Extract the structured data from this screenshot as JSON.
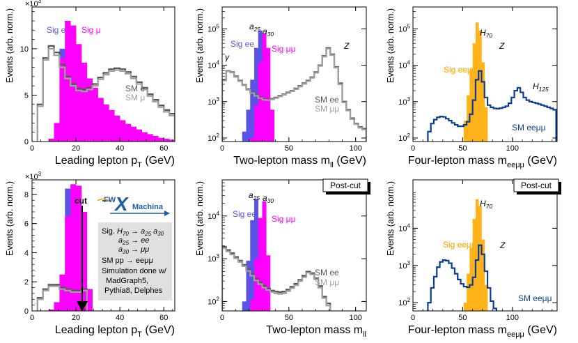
{
  "chart_data": [
    {
      "type": "histogram",
      "id": "p1",
      "xlabel": "Leading lepton p",
      "xlabel_sub": "T",
      "xlabel_unit": " (GeV)",
      "ylabel": "Events (arb. norm.)",
      "multiplier": "×10",
      "multiplier_exp": "3",
      "xlim": [
        0,
        65
      ],
      "ylim": [
        0,
        14.5
      ],
      "yscale": "linear",
      "xticks": [
        0,
        20,
        40,
        60
      ],
      "yticks": [
        0,
        5,
        10
      ],
      "bin_width": 2.5,
      "series": [
        {
          "name": "SM e",
          "style": "line",
          "color": "#555555",
          "x0": 2.5,
          "values": [
            4.0,
            9.0,
            10.3,
            9.6,
            8.3,
            7.0,
            6.2,
            5.7,
            5.6,
            5.8,
            6.2,
            6.9,
            7.4,
            7.8,
            7.9,
            7.8,
            7.5,
            7.0,
            6.4,
            5.8,
            5.1,
            4.5,
            3.9,
            3.4,
            3.0
          ]
        },
        {
          "name": "SM μ",
          "style": "line",
          "color": "#a0a0a0",
          "x0": 2.5,
          "values": [
            3.8,
            8.8,
            10.0,
            9.3,
            8.0,
            6.8,
            6.0,
            5.5,
            5.4,
            5.6,
            6.0,
            6.7,
            7.2,
            7.6,
            7.7,
            7.6,
            7.3,
            6.8,
            6.2,
            5.6,
            4.9,
            4.3,
            3.7,
            3.2,
            2.8
          ]
        },
        {
          "name": "Sig e",
          "style": "fill",
          "color": "#5b52e6",
          "x0": 12.5,
          "values": [
            10.0,
            13.0,
            12.5,
            9.0
          ]
        },
        {
          "name": "Sig μ",
          "style": "fill",
          "color": "#ff00ff",
          "x0": 7.5,
          "values": [
            0.3,
            2.0,
            9.0,
            13.0,
            12.5,
            10.5,
            8.5,
            6.8,
            5.8,
            4.7,
            4.0,
            3.4,
            2.8,
            2.3,
            1.9,
            1.6,
            1.3,
            1.0,
            0.8,
            0.6,
            0.4,
            0.3,
            0.2
          ]
        }
      ],
      "legend": [
        {
          "text": "Sig e",
          "color": "#5b52e6",
          "pos": "top-left"
        },
        {
          "text": "Sig μ",
          "color": "#ff00ff",
          "pos": "top-left"
        },
        {
          "text": "SM e",
          "color": "#555555",
          "pos": "right"
        },
        {
          "text": "SM μ",
          "color": "#a0a0a0",
          "pos": "right"
        }
      ]
    },
    {
      "type": "histogram",
      "id": "p2",
      "xlabel": "Two-lepton mass m",
      "xlabel_sub": "ll",
      "xlabel_unit": " (GeV)",
      "ylabel": "Events (arb. norm.)",
      "xlim": [
        0,
        108
      ],
      "ylim": [
        80,
        400000
      ],
      "yscale": "log",
      "xticks": [
        0,
        50,
        100
      ],
      "yticks": [
        {
          "v": 100,
          "label": "10",
          "exp": "2"
        },
        {
          "v": 1000,
          "label": "10",
          "exp": "3"
        },
        {
          "v": 10000,
          "label": "10",
          "exp": "4"
        },
        {
          "v": 100000,
          "label": "10",
          "exp": "5"
        }
      ],
      "bin_width": 3,
      "series": [
        {
          "name": "SM ee",
          "style": "line",
          "color": "#555555",
          "x0": 0,
          "values": [
            4000,
            7000,
            6500,
            5000,
            3800,
            2900,
            2200,
            1800,
            1500,
            1300,
            1180,
            1150,
            1200,
            1300,
            1450,
            1600,
            1800,
            2000,
            2300,
            2700,
            3200,
            3800,
            4700,
            6500,
            10000,
            18000,
            30000,
            20000,
            9000,
            3200,
            1000,
            600,
            350,
            250,
            200,
            180
          ]
        },
        {
          "name": "SM μμ",
          "style": "line",
          "color": "#a0a0a0",
          "x0": 0,
          "values": [
            3800,
            6800,
            6300,
            4800,
            3650,
            2800,
            2100,
            1720,
            1440,
            1250,
            1130,
            1100,
            1150,
            1250,
            1390,
            1540,
            1730,
            1930,
            2200,
            2600,
            3080,
            3650,
            4500,
            6200,
            9600,
            17200,
            28500,
            19000,
            8600,
            3000,
            950,
            570,
            330,
            240,
            190,
            170
          ]
        },
        {
          "name": "Sig ee",
          "style": "fill",
          "color": "#5b52e6",
          "x0": 15,
          "values": [
            150,
            600,
            4000,
            30000,
            90000,
            15000
          ]
        },
        {
          "name": "Sig μμ",
          "style": "fill",
          "color": "#ff00ff",
          "x0": 21,
          "values": [
            100,
            800,
            12000,
            75000,
            30000,
            600
          ]
        }
      ],
      "annotations": [
        "a",
        "25",
        "a",
        "30",
        "Z",
        "γ"
      ],
      "legend": [
        {
          "text": "Sig ee",
          "color": "#5b52e6"
        },
        {
          "text": "Sig μμ",
          "color": "#ff00ff"
        },
        {
          "text": "SM ee",
          "color": "#555555"
        },
        {
          "text": "SM μμ",
          "color": "#a0a0a0"
        }
      ]
    },
    {
      "type": "histogram",
      "id": "p3",
      "xlabel": "Four-lepton mass m",
      "xlabel_sub": "eeμμ",
      "xlabel_unit": " (GeV)",
      "ylabel": "Events (arb. norm.)",
      "xlim": [
        0,
        145
      ],
      "ylim": [
        80,
        400000
      ],
      "yscale": "log",
      "xticks": [
        0,
        50,
        100
      ],
      "yticks": [
        {
          "v": 100,
          "label": "10",
          "exp": "2"
        },
        {
          "v": 1000,
          "label": "10",
          "exp": "3"
        },
        {
          "v": 10000,
          "label": "10",
          "exp": "4"
        },
        {
          "v": 100000,
          "label": "10",
          "exp": "5"
        }
      ],
      "bin_width": 3,
      "series": [
        {
          "name": "SM eeμμ",
          "style": "line",
          "color": "#0a3d91",
          "x0": 15,
          "values": [
            150,
            250,
            320,
            370,
            390,
            380,
            340,
            300,
            260,
            230,
            210,
            210,
            230,
            280,
            450,
            1100,
            4000,
            7000,
            3500,
            1300,
            800,
            700,
            650,
            640,
            660,
            700,
            750,
            900,
            1300,
            2000,
            2400,
            1800,
            1300,
            1100,
            1000,
            950,
            900,
            850,
            800,
            750,
            700,
            650,
            600
          ]
        },
        {
          "name": "Sig eeμμ",
          "style": "fill",
          "color": "#ffb31a",
          "x0": 51,
          "values": [
            300,
            1500,
            8000,
            40000,
            150000,
            90000,
            12000,
            700
          ]
        }
      ],
      "annotations": [
        "H",
        "70",
        "Z",
        "H",
        "125"
      ],
      "legend": [
        {
          "text": "Sig eeμμ",
          "color": "#ffb31a"
        },
        {
          "text": "SM eeμμ",
          "color": "#0a3d91"
        }
      ]
    },
    {
      "type": "histogram",
      "id": "p4",
      "xlabel": "Leading lepton p",
      "xlabel_sub": "T",
      "xlabel_unit": " (GeV)",
      "ylabel": "Events (arb. norm.)",
      "multiplier": "×10",
      "multiplier_exp": "3",
      "xlim": [
        0,
        65
      ],
      "ylim": [
        0,
        9.0
      ],
      "yscale": "linear",
      "xticks": [
        0,
        20,
        40,
        60
      ],
      "yticks": [
        0,
        2,
        4,
        6,
        8
      ],
      "bin_width": 2.5,
      "series": [
        {
          "name": "SM e",
          "style": "line",
          "color": "#555555",
          "x0": 2.5,
          "values": [
            0.9,
            1.5,
            1.8,
            1.8,
            1.6,
            1.5,
            1.4,
            1.4,
            1.5
          ]
        },
        {
          "name": "SM μ",
          "style": "line",
          "color": "#a0a0a0",
          "x0": 2.5,
          "values": [
            0.8,
            1.4,
            1.7,
            1.7,
            1.5,
            1.4,
            1.3,
            1.3,
            1.4
          ]
        },
        {
          "name": "Sig e",
          "style": "fill",
          "color": "#5b52e6",
          "x0": 15,
          "values": [
            8.4,
            8.2,
            5.5
          ]
        },
        {
          "name": "Sig μ",
          "style": "fill",
          "color": "#ff00ff",
          "x0": 7.5,
          "values": [
            0.1,
            0.6,
            2.5,
            6.5,
            8.7,
            8.6,
            6.8,
            1.5
          ]
        }
      ],
      "cut": {
        "label": "cut",
        "x": 23
      },
      "infobox": {
        "line1_a": "Sig. ",
        "line1_b": "H",
        "line1_c": "70",
        "line1_d": " → ",
        "line1_e": "a",
        "line1_f": "25",
        "line1_g": " a",
        "line1_h": "30",
        "line2_a": "a",
        "line2_b": "25",
        "line2_c": " → ee",
        "line3_a": "a",
        "line3_b": "30",
        "line3_c": " → μμ",
        "line4": "SM pp → eeμμ",
        "line5": "Simulation done w/",
        "line6": "MadGraph5,",
        "line7": "Pythia8, Delphes"
      },
      "logo": {
        "fw": "FW",
        "x": "X",
        "machina": "Machina"
      }
    },
    {
      "type": "histogram",
      "id": "p5",
      "badge": "Post-cut",
      "xlabel": "Two-lepton mass m",
      "xlabel_sub": "ll",
      "xlabel_unit": "",
      "ylabel": "Events (arb. norm.)",
      "xlim": [
        0,
        108
      ],
      "ylim": [
        60,
        70000
      ],
      "yscale": "log",
      "xticks": [
        0,
        50,
        100
      ],
      "yticks": [
        {
          "v": 100,
          "label": "10",
          "exp": "2"
        },
        {
          "v": 1000,
          "label": "10",
          "exp": "3"
        },
        {
          "v": 10000,
          "label": "10",
          "exp": "4"
        }
      ],
      "bin_width": 3,
      "series": [
        {
          "name": "SM ee",
          "style": "line",
          "color": "#555555",
          "x0": 0,
          "values": [
            1900,
            1600,
            1350,
            1100,
            900,
            720,
            560,
            430,
            340,
            280,
            230,
            200,
            180,
            170,
            165,
            170,
            190,
            220,
            260,
            320,
            400,
            500,
            460,
            350,
            230,
            130,
            90
          ]
        },
        {
          "name": "SM μμ",
          "style": "line",
          "color": "#a0a0a0",
          "x0": 0,
          "values": [
            1750,
            1480,
            1250,
            1020,
            840,
            670,
            520,
            400,
            310,
            255,
            210,
            185,
            165,
            155,
            150,
            155,
            175,
            205,
            240,
            300,
            370,
            470,
            430,
            330,
            210,
            120,
            80
          ]
        },
        {
          "name": "Sig ee",
          "style": "fill",
          "color": "#5b52e6",
          "x0": 15,
          "values": [
            100,
            900,
            8000,
            25000,
            1500
          ]
        },
        {
          "name": "Sig μμ",
          "style": "fill",
          "color": "#ff00ff",
          "x0": 21,
          "values": [
            110,
            1000,
            9000,
            22000,
            1200
          ]
        }
      ],
      "annotations": [
        "a",
        "25",
        "a",
        "30"
      ],
      "legend": [
        {
          "text": "Sig ee",
          "color": "#5b52e6"
        },
        {
          "text": "Sig μμ",
          "color": "#ff00ff"
        },
        {
          "text": "SM ee",
          "color": "#555555"
        },
        {
          "text": "SM μμ",
          "color": "#a0a0a0"
        }
      ]
    },
    {
      "type": "histogram",
      "id": "p6",
      "badge": "Post-cut",
      "xlabel": "Four-lepton mass m",
      "xlabel_sub": "eeμμ",
      "xlabel_unit": " (GeV)",
      "ylabel": "Events (arb. norm.)",
      "xlim": [
        0,
        145
      ],
      "ylim": [
        60,
        200000
      ],
      "yscale": "log",
      "xticks": [
        0,
        50,
        100
      ],
      "yticks": [
        {
          "v": 100,
          "label": "10",
          "exp": "2"
        },
        {
          "v": 1000,
          "label": "10",
          "exp": "3"
        },
        {
          "v": 10000,
          "label": "10",
          "exp": "4"
        }
      ],
      "bin_width": 3,
      "series": [
        {
          "name": "SM eeμμ",
          "style": "line",
          "color": "#0a3d91",
          "x0": 15,
          "values": [
            100,
            250,
            500,
            900,
            1250,
            1400,
            1350,
            1150,
            850,
            600,
            420,
            320,
            270,
            260,
            300,
            480,
            1400,
            3500,
            2000,
            700,
            250,
            110,
            70
          ]
        },
        {
          "name": "Sig eeμμ",
          "style": "fill",
          "color": "#ffb31a",
          "x0": 51,
          "values": [
            100,
            600,
            3000,
            18000,
            60000,
            40000,
            5000,
            300
          ]
        }
      ],
      "annotations": [
        "H",
        "70",
        "Z"
      ],
      "legend": [
        {
          "text": "Sig eeμμ",
          "color": "#ffb31a"
        },
        {
          "text": "SM eeμμ",
          "color": "#0a3d91"
        }
      ]
    }
  ]
}
